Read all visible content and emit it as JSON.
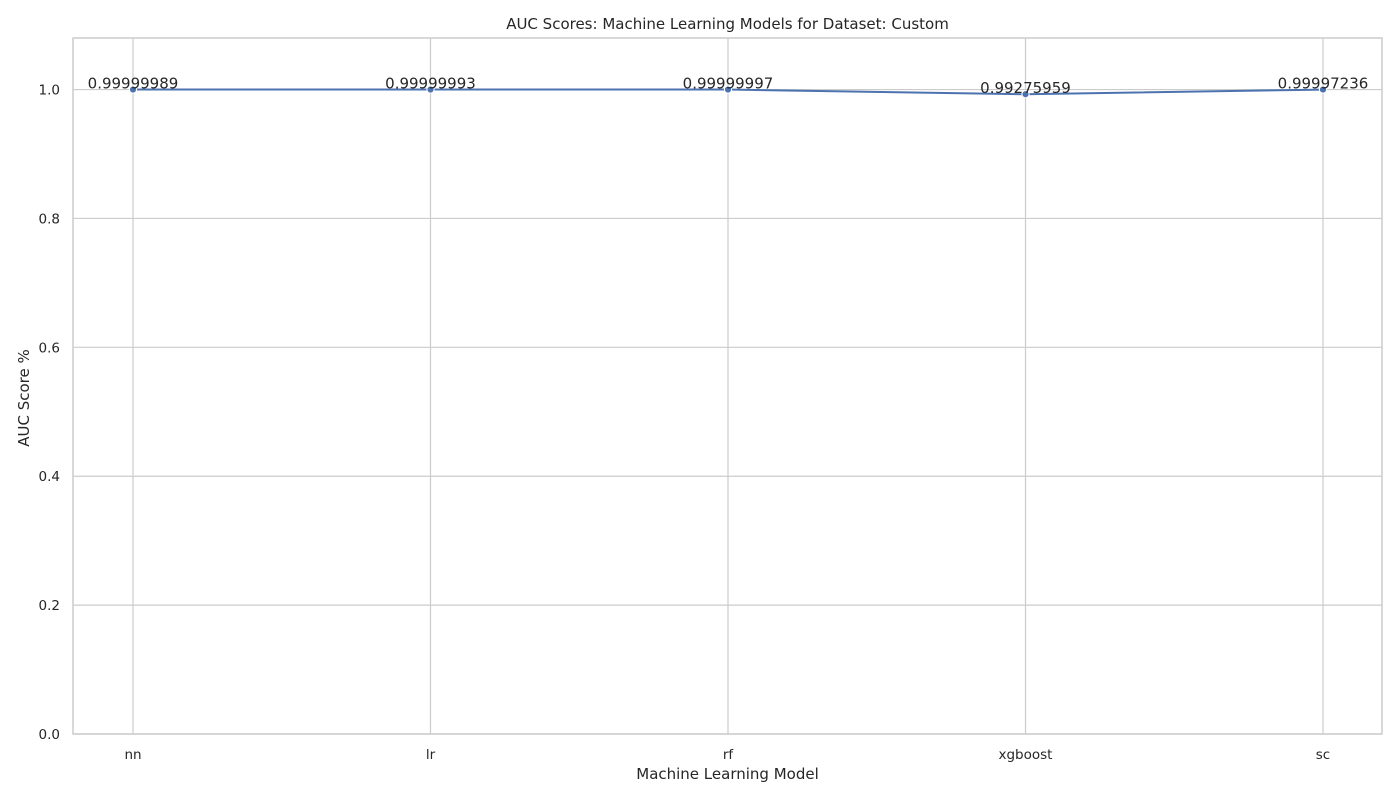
{
  "chart_data": {
    "type": "line",
    "title": "AUC Scores: Machine Learning Models for Dataset: Custom",
    "xlabel": "Machine Learning Model",
    "ylabel": "AUC Score %",
    "categories": [
      "nn",
      "lr",
      "rf",
      "xgboost",
      "sc"
    ],
    "series": [
      {
        "values": [
          0.99999989,
          0.99999993,
          0.99999997,
          0.99275959,
          0.99997236
        ],
        "color": "#4c72b0",
        "marker": "circle"
      }
    ],
    "data_labels": [
      "0.99999989",
      "0.99999993",
      "0.99999997",
      "0.99275959",
      "0.99997236"
    ],
    "y_ticks": [
      0.0,
      0.2,
      0.4,
      0.6,
      0.8,
      1.0
    ],
    "y_tick_labels": [
      "0.0",
      "0.2",
      "0.4",
      "0.6",
      "0.8",
      "1.0"
    ],
    "ylim": [
      0,
      1.08
    ],
    "grid": true,
    "style": "whitegrid",
    "colors": {
      "line": "#4c72b0",
      "grid": "#cccccc",
      "spine": "#cccccc",
      "text": "#262626",
      "background": "#ffffff"
    }
  }
}
